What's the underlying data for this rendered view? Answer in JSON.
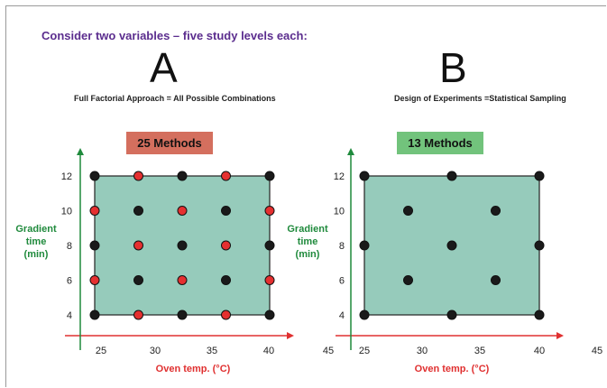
{
  "headline": "Consider two variables – five study levels each:",
  "panels": [
    {
      "letter": "A",
      "subtitle": "Full Factorial Approach = All Possible Combinations",
      "badge": "25 Methods",
      "badge_color": "#d46f5e"
    },
    {
      "letter": "B",
      "subtitle": "Design of Experiments =Statistical Sampling",
      "badge": "13 Methods",
      "badge_color": "#72c37c"
    }
  ],
  "colors": {
    "region_fill": "#96cbbb",
    "x_axis": "#e03030",
    "y_axis": "#1f8a3c",
    "label_red": "#e03030",
    "label_green": "#1f8a3c",
    "black_point": "#1a1a1a",
    "red_point": "#e53030"
  },
  "chart_data": [
    {
      "type": "scatter",
      "xlabel": "Oven temp. (°C)",
      "ylabel": [
        "Gradient",
        "time",
        "(min)"
      ],
      "x_ticks": [
        "25",
        "30",
        "35",
        "40",
        "45"
      ],
      "y_ticks": [
        "4",
        "6",
        "8",
        "10",
        "12"
      ],
      "xlim": [
        25,
        40
      ],
      "ylim": [
        4,
        12
      ],
      "points": [
        {
          "x": 25,
          "y": 12,
          "c": "black"
        },
        {
          "x": 28.75,
          "y": 12,
          "c": "red"
        },
        {
          "x": 32.5,
          "y": 12,
          "c": "black"
        },
        {
          "x": 36.25,
          "y": 12,
          "c": "red"
        },
        {
          "x": 40,
          "y": 12,
          "c": "black"
        },
        {
          "x": 25,
          "y": 10,
          "c": "red"
        },
        {
          "x": 28.75,
          "y": 10,
          "c": "black"
        },
        {
          "x": 32.5,
          "y": 10,
          "c": "red"
        },
        {
          "x": 36.25,
          "y": 10,
          "c": "black"
        },
        {
          "x": 40,
          "y": 10,
          "c": "red"
        },
        {
          "x": 25,
          "y": 8,
          "c": "black"
        },
        {
          "x": 28.75,
          "y": 8,
          "c": "red"
        },
        {
          "x": 32.5,
          "y": 8,
          "c": "black"
        },
        {
          "x": 36.25,
          "y": 8,
          "c": "red"
        },
        {
          "x": 40,
          "y": 8,
          "c": "black"
        },
        {
          "x": 25,
          "y": 6,
          "c": "red"
        },
        {
          "x": 28.75,
          "y": 6,
          "c": "black"
        },
        {
          "x": 32.5,
          "y": 6,
          "c": "red"
        },
        {
          "x": 36.25,
          "y": 6,
          "c": "black"
        },
        {
          "x": 40,
          "y": 6,
          "c": "red"
        },
        {
          "x": 25,
          "y": 4,
          "c": "black"
        },
        {
          "x": 28.75,
          "y": 4,
          "c": "red"
        },
        {
          "x": 32.5,
          "y": 4,
          "c": "black"
        },
        {
          "x": 36.25,
          "y": 4,
          "c": "red"
        },
        {
          "x": 40,
          "y": 4,
          "c": "black"
        }
      ]
    },
    {
      "type": "scatter",
      "xlabel": "Oven temp. (°C)",
      "ylabel": [
        "Gradient",
        "time",
        "(min)"
      ],
      "x_ticks": [
        "25",
        "30",
        "35",
        "40",
        "45"
      ],
      "y_ticks": [
        "4",
        "6",
        "8",
        "10",
        "12"
      ],
      "xlim": [
        25,
        40
      ],
      "ylim": [
        4,
        12
      ],
      "points": [
        {
          "x": 25,
          "y": 12,
          "c": "black"
        },
        {
          "x": 32.5,
          "y": 12,
          "c": "black"
        },
        {
          "x": 40,
          "y": 12,
          "c": "black"
        },
        {
          "x": 28.75,
          "y": 10,
          "c": "black"
        },
        {
          "x": 36.25,
          "y": 10,
          "c": "black"
        },
        {
          "x": 25,
          "y": 8,
          "c": "black"
        },
        {
          "x": 32.5,
          "y": 8,
          "c": "black"
        },
        {
          "x": 40,
          "y": 8,
          "c": "black"
        },
        {
          "x": 28.75,
          "y": 6,
          "c": "black"
        },
        {
          "x": 36.25,
          "y": 6,
          "c": "black"
        },
        {
          "x": 25,
          "y": 4,
          "c": "black"
        },
        {
          "x": 32.5,
          "y": 4,
          "c": "black"
        },
        {
          "x": 40,
          "y": 4,
          "c": "black"
        }
      ]
    }
  ]
}
